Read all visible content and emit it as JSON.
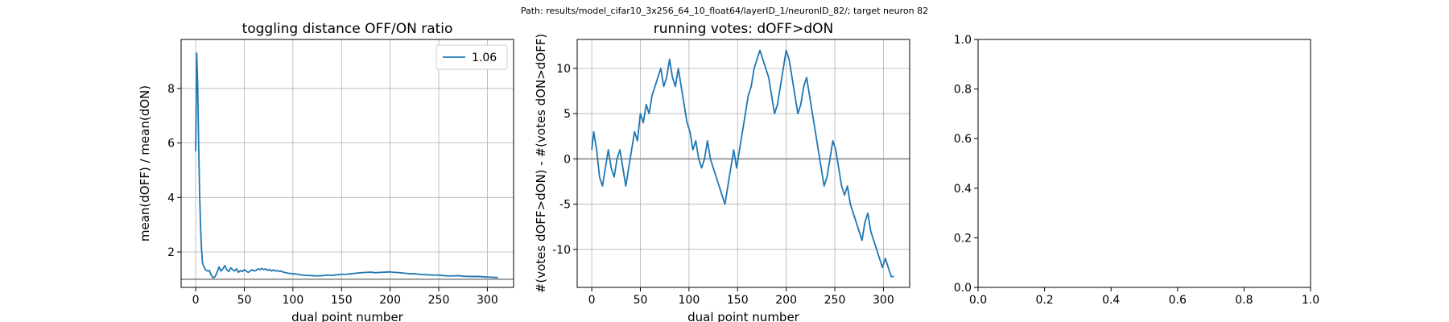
{
  "suptitle": "Path: results/model_cifar10_3x256_64_10_float64/layerID_1/neuronID_82/; target neuron 82",
  "colors": {
    "series": "#1f77b4",
    "refline": "#7f7f7f",
    "grid": "#b0b0b0",
    "axis": "#000000"
  },
  "chart_data": [
    {
      "type": "line",
      "title": "toggling distance OFF/ON ratio",
      "xlabel": "dual point number",
      "ylabel": "mean(dOFF) / mean(dON)",
      "xlim": [
        -15,
        327
      ],
      "ylim": [
        0.7,
        9.8
      ],
      "xticks": [
        0,
        50,
        100,
        150,
        200,
        250,
        300
      ],
      "yticks": [
        2,
        4,
        6,
        8
      ],
      "grid": true,
      "legend": {
        "position": "top-right",
        "entries": [
          "1.06"
        ]
      },
      "hline": 1,
      "series": [
        {
          "name": "1.06",
          "x": [
            0,
            1,
            2,
            3,
            4,
            5,
            6,
            7,
            8,
            10,
            12,
            14,
            16,
            18,
            20,
            22,
            24,
            26,
            28,
            30,
            32,
            34,
            36,
            38,
            40,
            42,
            44,
            46,
            48,
            50,
            52,
            54,
            56,
            58,
            60,
            62,
            64,
            66,
            68,
            70,
            72,
            74,
            76,
            78,
            80,
            82,
            84,
            86,
            88,
            90,
            95,
            100,
            105,
            110,
            115,
            120,
            125,
            130,
            135,
            140,
            145,
            150,
            155,
            160,
            165,
            170,
            175,
            180,
            185,
            190,
            195,
            200,
            205,
            210,
            215,
            220,
            225,
            230,
            235,
            240,
            245,
            250,
            255,
            260,
            265,
            270,
            275,
            280,
            285,
            290,
            295,
            300,
            305,
            311
          ],
          "y": [
            5.7,
            9.3,
            8.2,
            6.0,
            4.2,
            2.9,
            2.1,
            1.6,
            1.5,
            1.35,
            1.3,
            1.32,
            1.15,
            1.05,
            1.1,
            1.25,
            1.45,
            1.3,
            1.38,
            1.5,
            1.35,
            1.28,
            1.42,
            1.35,
            1.3,
            1.38,
            1.25,
            1.32,
            1.28,
            1.35,
            1.3,
            1.25,
            1.3,
            1.35,
            1.3,
            1.32,
            1.38,
            1.35,
            1.4,
            1.35,
            1.38,
            1.32,
            1.36,
            1.3,
            1.34,
            1.3,
            1.32,
            1.28,
            1.3,
            1.26,
            1.22,
            1.2,
            1.18,
            1.15,
            1.14,
            1.13,
            1.12,
            1.13,
            1.15,
            1.14,
            1.16,
            1.18,
            1.18,
            1.2,
            1.22,
            1.24,
            1.25,
            1.26,
            1.24,
            1.25,
            1.26,
            1.27,
            1.25,
            1.24,
            1.22,
            1.2,
            1.2,
            1.18,
            1.17,
            1.16,
            1.15,
            1.15,
            1.13,
            1.12,
            1.12,
            1.13,
            1.11,
            1.1,
            1.1,
            1.1,
            1.09,
            1.08,
            1.07,
            1.06
          ]
        }
      ]
    },
    {
      "type": "line",
      "title": "running votes: dOFF>dON",
      "xlabel": "dual point number",
      "ylabel": "#(votes dOFF>dON) - #(votes dON>dOFF)",
      "xlim": [
        -15,
        327
      ],
      "ylim": [
        -14.2,
        13.2
      ],
      "xticks": [
        0,
        50,
        100,
        150,
        200,
        250,
        300
      ],
      "yticks": [
        -10,
        -5,
        0,
        5,
        10
      ],
      "grid": true,
      "hline": 0,
      "series": [
        {
          "x": [
            0,
            2,
            5,
            8,
            11,
            14,
            17,
            20,
            23,
            26,
            29,
            32,
            35,
            38,
            41,
            44,
            47,
            50,
            53,
            56,
            59,
            62,
            65,
            68,
            71,
            74,
            77,
            80,
            83,
            86,
            89,
            92,
            95,
            98,
            101,
            104,
            107,
            110,
            113,
            116,
            119,
            122,
            125,
            128,
            131,
            134,
            137,
            140,
            143,
            146,
            149,
            152,
            155,
            158,
            161,
            164,
            167,
            170,
            173,
            176,
            179,
            182,
            185,
            188,
            191,
            194,
            197,
            200,
            203,
            206,
            209,
            212,
            215,
            218,
            221,
            224,
            227,
            230,
            233,
            236,
            239,
            242,
            245,
            248,
            251,
            254,
            257,
            260,
            263,
            266,
            269,
            272,
            275,
            278,
            281,
            284,
            287,
            290,
            293,
            296,
            299,
            302,
            305,
            308,
            311
          ],
          "y": [
            1,
            3,
            1,
            -2,
            -3,
            -1,
            1,
            -1,
            -2,
            0,
            1,
            -1,
            -3,
            -1,
            1,
            3,
            2,
            5,
            4,
            6,
            5,
            7,
            8,
            9,
            10,
            8,
            9,
            11,
            9,
            8,
            10,
            8,
            6,
            4,
            3,
            1,
            2,
            0,
            -1,
            0,
            2,
            0,
            -1,
            -2,
            -3,
            -4,
            -5,
            -3,
            -1,
            1,
            -1,
            1,
            3,
            5,
            7,
            8,
            10,
            11,
            12,
            11,
            10,
            9,
            7,
            5,
            6,
            8,
            10,
            12,
            11,
            9,
            7,
            5,
            6,
            8,
            9,
            7,
            5,
            3,
            1,
            -1,
            -3,
            -2,
            0,
            2,
            1,
            -1,
            -3,
            -4,
            -3,
            -5,
            -6,
            -7,
            -8,
            -9,
            -7,
            -6,
            -8,
            -9,
            -10,
            -11,
            -12,
            -11,
            -12,
            -13,
            -13
          ]
        }
      ]
    },
    {
      "type": "line",
      "title": "",
      "xlabel": "",
      "ylabel": "",
      "xlim": [
        0,
        1
      ],
      "ylim": [
        0,
        1
      ],
      "xticks": [
        0.0,
        0.2,
        0.4,
        0.6,
        0.8,
        1.0
      ],
      "yticks": [
        0.0,
        0.2,
        0.4,
        0.6,
        0.8,
        1.0
      ],
      "tick_format": "0.0",
      "grid": false,
      "series": []
    }
  ]
}
